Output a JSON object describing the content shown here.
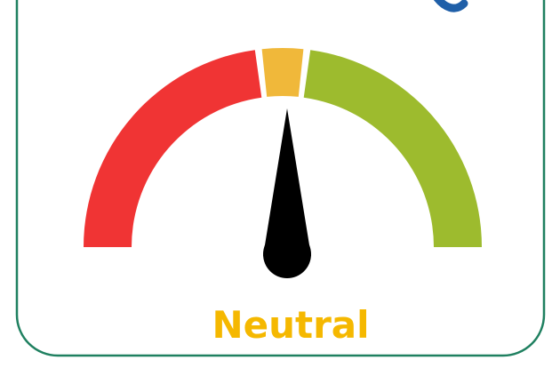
{
  "label": "Neutral"
}
